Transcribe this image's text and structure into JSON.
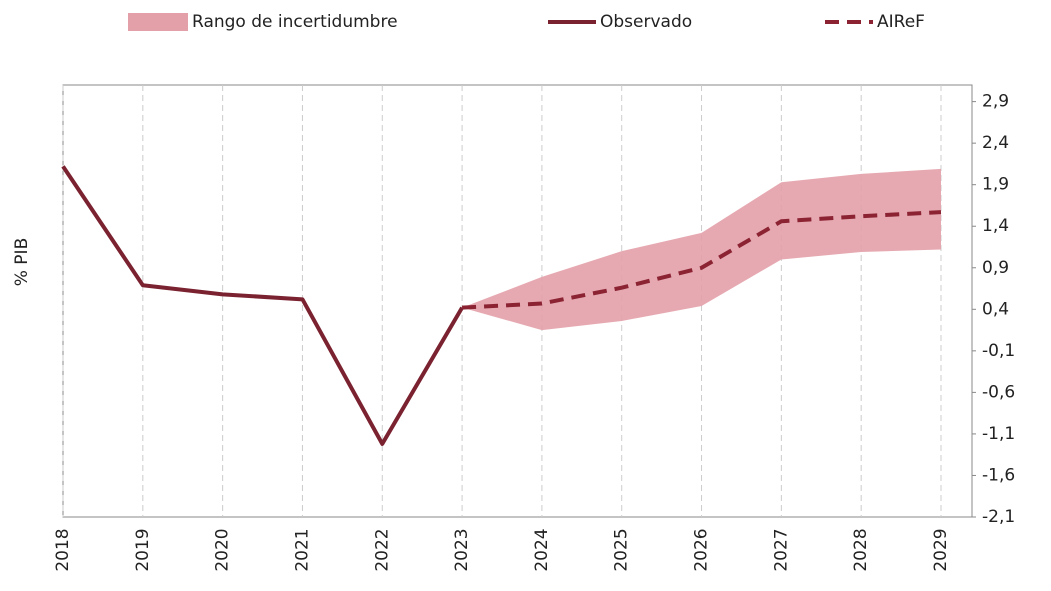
{
  "chart_data": {
    "type": "line",
    "y_label": "% PIB",
    "categories": [
      "2018",
      "2019",
      "2020",
      "2021",
      "2022",
      "2023",
      "2024",
      "2025",
      "2026",
      "2027",
      "2028",
      "2029"
    ],
    "band": {
      "name": "Rango de incertidumbre",
      "color": "#e3a0a8",
      "lower": [
        null,
        null,
        null,
        null,
        null,
        0.42,
        0.15,
        0.26,
        0.44,
        1.0,
        1.09,
        1.12
      ],
      "upper": [
        null,
        null,
        null,
        null,
        null,
        0.42,
        0.79,
        1.1,
        1.32,
        1.93,
        2.03,
        2.09
      ]
    },
    "series": [
      {
        "name": "Observado",
        "color": "#7b2230",
        "dash": false,
        "values": [
          2.12,
          0.69,
          0.58,
          0.52,
          -1.22,
          0.42,
          null,
          null,
          null,
          null,
          null,
          null
        ]
      },
      {
        "name": "AIReF",
        "color": "#8b2333",
        "dash": true,
        "values": [
          null,
          null,
          null,
          null,
          null,
          0.42,
          0.47,
          0.66,
          0.9,
          1.46,
          1.52,
          1.57
        ]
      }
    ],
    "ylim": [
      -2.1,
      3.1
    ],
    "yticks": [
      {
        "value": 2.9,
        "label": "2,9"
      },
      {
        "value": 2.4,
        "label": "2,4"
      },
      {
        "value": 1.9,
        "label": "1,9"
      },
      {
        "value": 1.4,
        "label": "1,4"
      },
      {
        "value": 0.9,
        "label": "0,9"
      },
      {
        "value": 0.4,
        "label": "0,4"
      },
      {
        "value": -0.1,
        "label": "-0,1"
      },
      {
        "value": -0.6,
        "label": "-0,6"
      },
      {
        "value": -1.1,
        "label": "-1,1"
      },
      {
        "value": -1.6,
        "label": "-1,6"
      },
      {
        "value": -2.1,
        "label": "-2,1"
      }
    ],
    "grid": true
  }
}
